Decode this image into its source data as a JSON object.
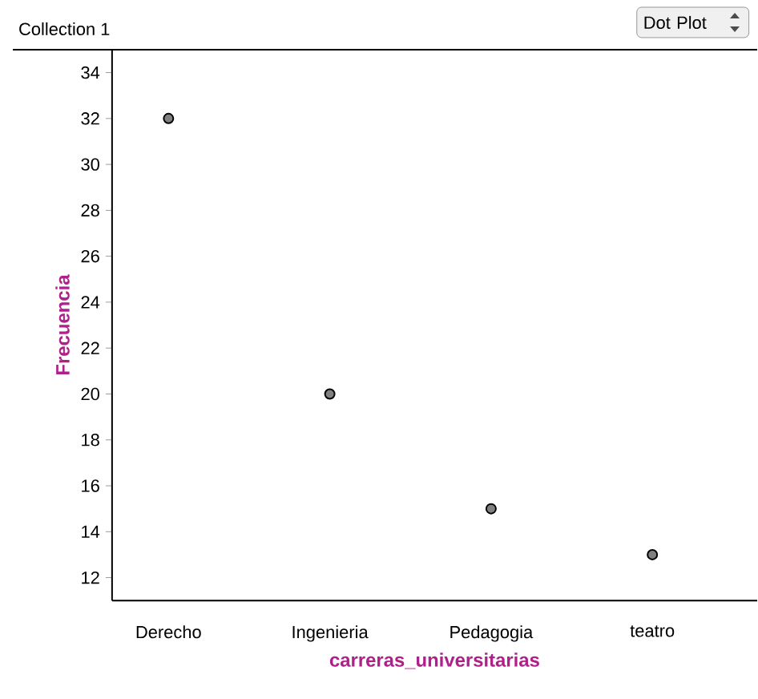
{
  "chart_data": {
    "type": "scatter",
    "title": "Collection 1",
    "xlabel": "carreras_universitarias",
    "ylabel": "Frecuencia",
    "annotations": [
      "Dot Plot"
    ],
    "categories": [
      "Derecho",
      "Ingenieria",
      "Pedagogia",
      "teatro"
    ],
    "values": [
      32,
      20,
      15,
      13
    ],
    "color": "#808080",
    "ylim": [
      11,
      35
    ],
    "yticks": [
      12,
      14,
      16,
      18,
      20,
      22,
      24,
      26,
      28,
      30,
      32,
      34
    ],
    "grid": false
  }
}
